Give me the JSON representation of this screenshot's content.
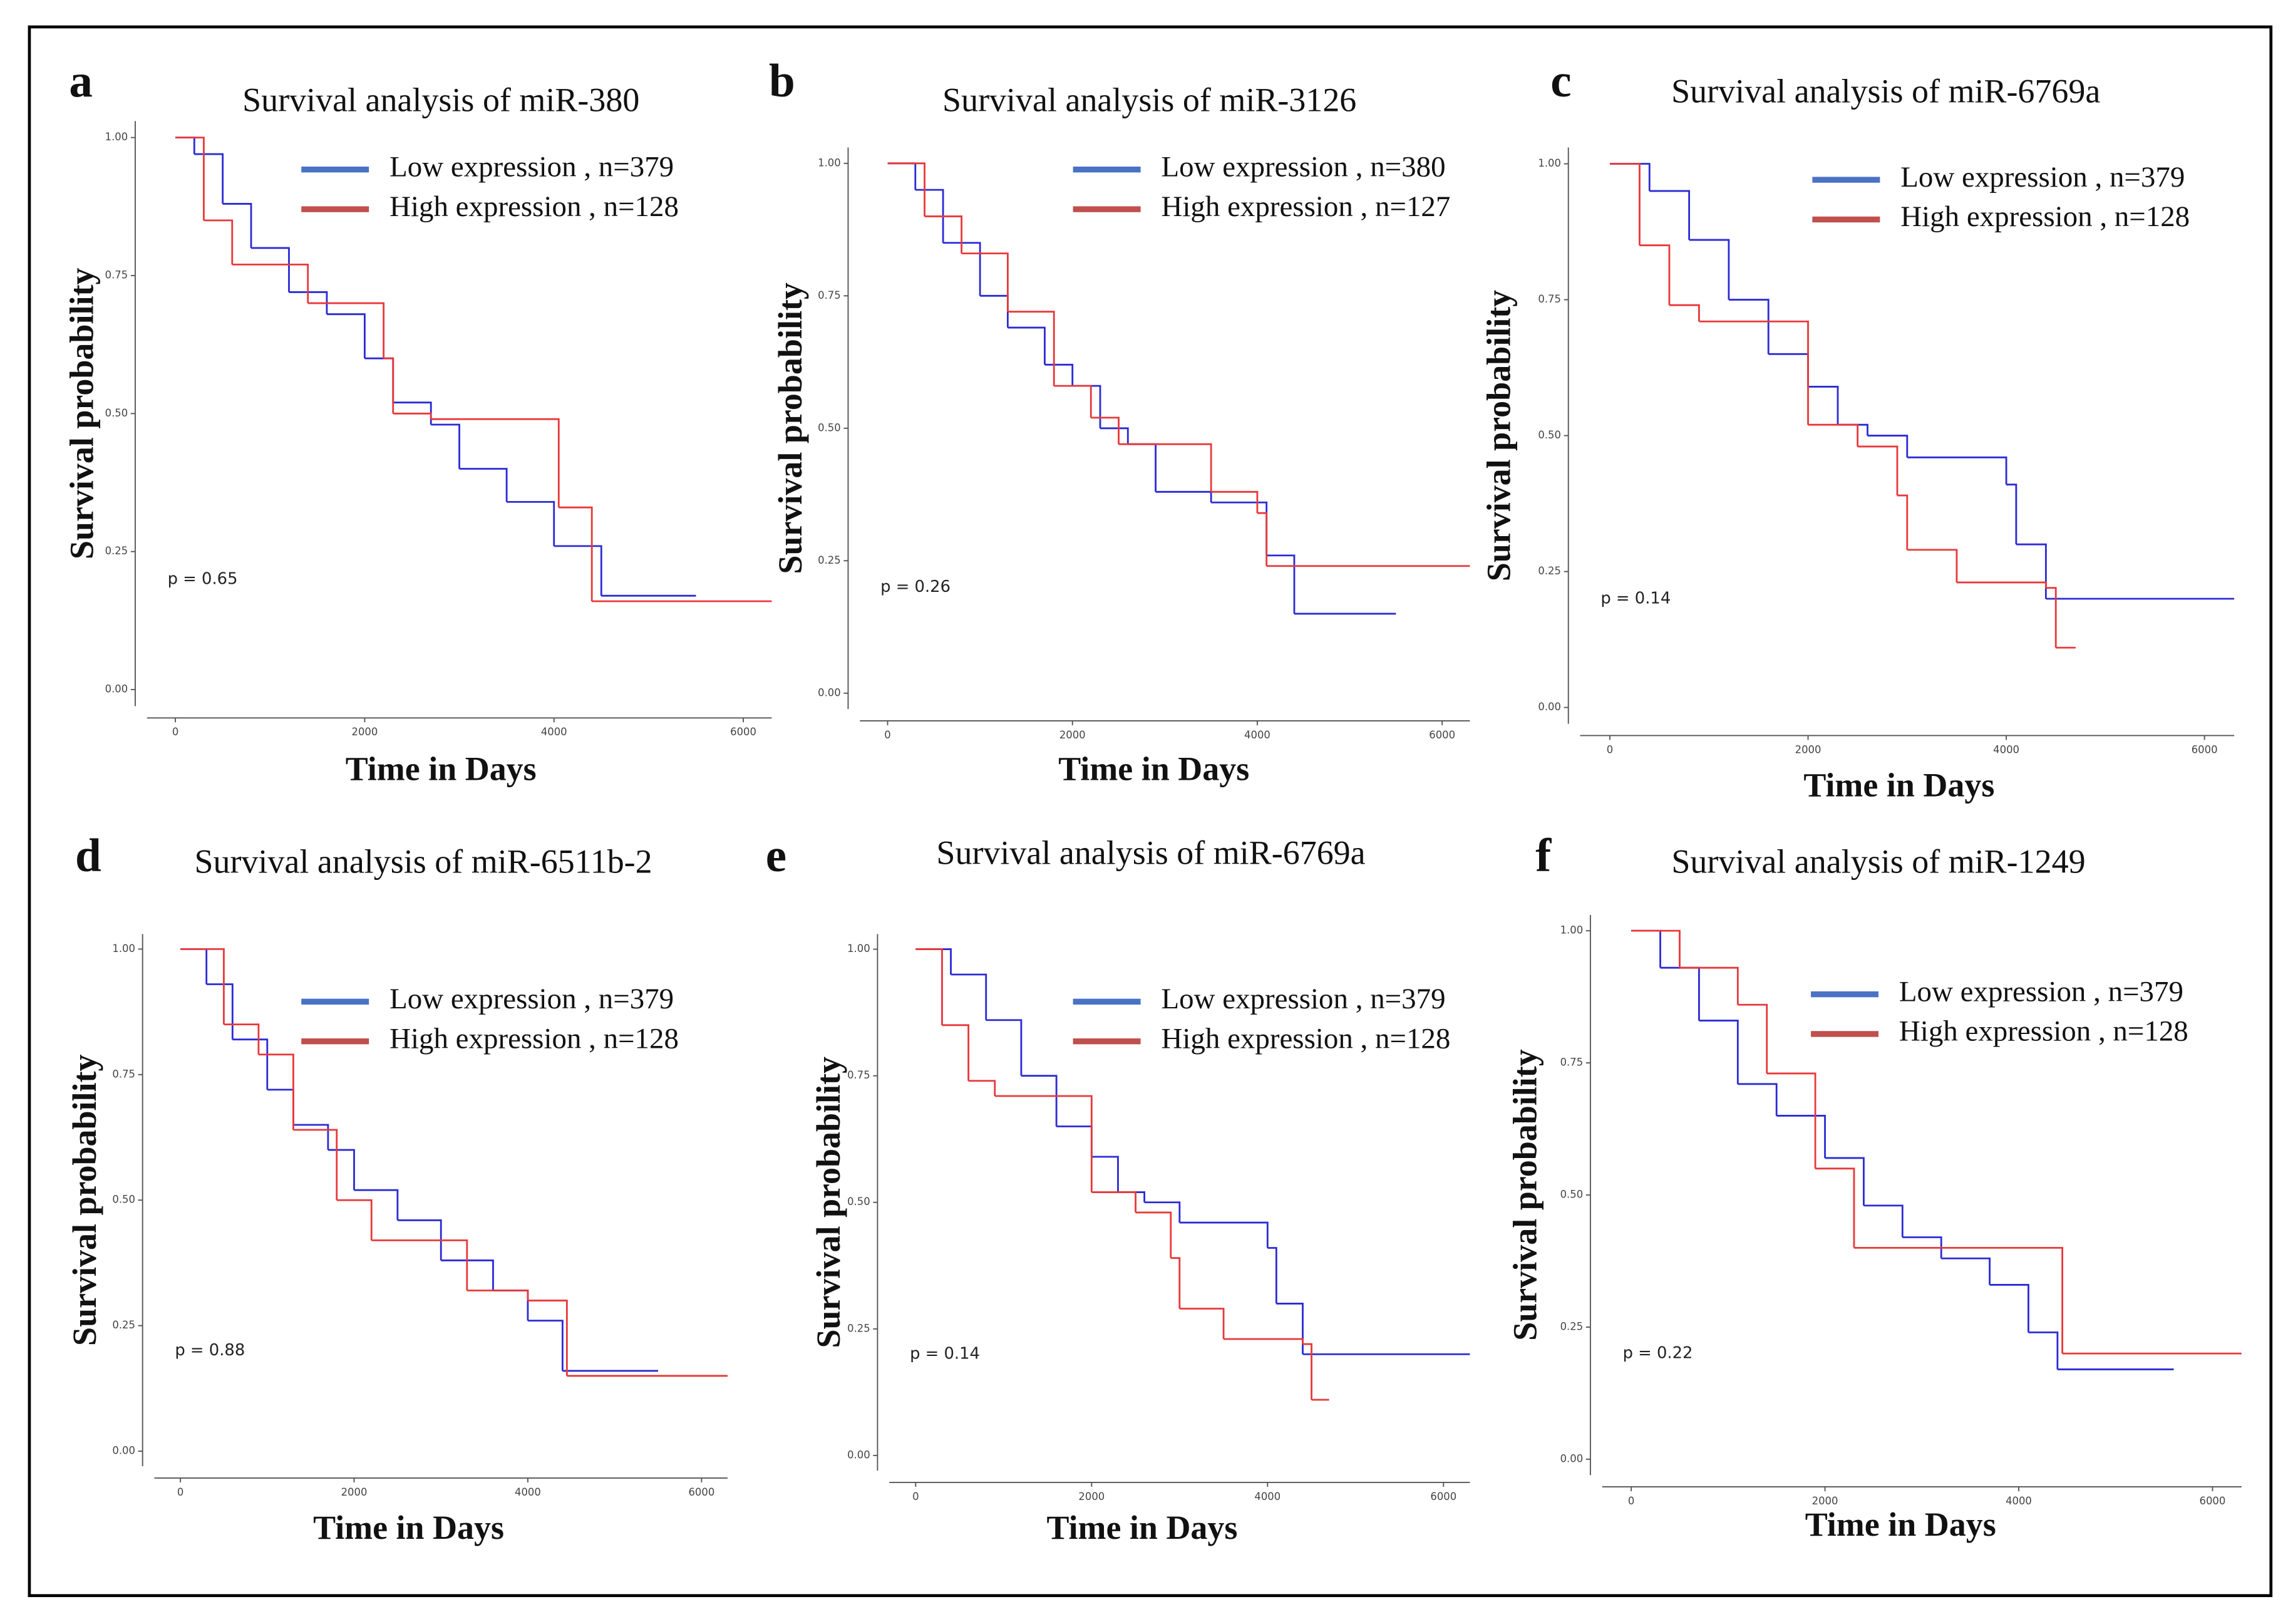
{
  "chart_data": [
    {
      "type": "step",
      "panel_label": "a",
      "title": "Survival analysis of miR-380",
      "xlabel": "Time in Days",
      "ylabel": "Survival probability",
      "annotation": "p = 0.65",
      "xlim": [
        -300,
        6300
      ],
      "ylim": [
        -0.03,
        1.03
      ],
      "xticks": [
        0,
        2000,
        4000,
        6000
      ],
      "yticks": [
        {
          "value": 0,
          "label": "0.00"
        },
        0.25,
        {
          "value": 0.5,
          "label": "0.50"
        },
        0.75,
        {
          "value": 1,
          "label": "1.00"
        }
      ],
      "series": [
        {
          "name": "Low expression , n=379",
          "color": "#2b2bd6",
          "legend_color": "#4a72c4",
          "x": [
            0,
            200,
            500,
            800,
            1200,
            1600,
            2000,
            2300,
            2700,
            3000,
            3500,
            4000,
            4500,
            5500
          ],
          "values": [
            1,
            0.97,
            0.88,
            0.8,
            0.72,
            0.68,
            0.6,
            0.52,
            0.48,
            0.4,
            0.34,
            0.26,
            0.17,
            0.17
          ]
        },
        {
          "name": "High expression , n=128",
          "color": "#e8383b",
          "legend_color": "#c0504d",
          "x": [
            0,
            300,
            600,
            1400,
            2200,
            2300,
            2700,
            4050,
            4400,
            6300
          ],
          "values": [
            1,
            0.85,
            0.77,
            0.7,
            0.6,
            0.5,
            0.49,
            0.33,
            0.16,
            0.16
          ]
        }
      ]
    },
    {
      "type": "step",
      "panel_label": "b",
      "title": "Survival analysis of miR-3126",
      "xlabel": "Time in Days",
      "ylabel": "Survival probability",
      "annotation": "p = 0.26",
      "xlim": [
        -300,
        6300
      ],
      "ylim": [
        -0.03,
        1.03
      ],
      "xticks": [
        0,
        2000,
        4000,
        6000
      ],
      "yticks": [
        {
          "value": 0,
          "label": "0.00"
        },
        0.25,
        {
          "value": 0.5,
          "label": "0.50"
        },
        0.75,
        {
          "value": 1,
          "label": "1.00"
        }
      ],
      "series": [
        {
          "name": "Low expression , n=380",
          "color": "#2b2bd6",
          "legend_color": "#4a72c4",
          "x": [
            0,
            300,
            600,
            1000,
            1300,
            1700,
            2000,
            2300,
            2600,
            2900,
            3500,
            4100,
            4400,
            5500
          ],
          "values": [
            1,
            0.95,
            0.85,
            0.75,
            0.69,
            0.62,
            0.58,
            0.5,
            0.47,
            0.38,
            0.36,
            0.26,
            0.15,
            0.15
          ]
        },
        {
          "name": "High expression , n=127",
          "color": "#e8383b",
          "legend_color": "#c0504d",
          "x": [
            0,
            400,
            800,
            1300,
            1800,
            2200,
            2500,
            3500,
            4000,
            4100,
            6300
          ],
          "values": [
            1,
            0.9,
            0.83,
            0.72,
            0.58,
            0.52,
            0.47,
            0.38,
            0.34,
            0.24,
            0.24
          ]
        }
      ]
    },
    {
      "type": "step",
      "panel_label": "c",
      "title": "Survival analysis of miR-6769a",
      "xlabel": "Time in Days",
      "ylabel": "Survival probability",
      "annotation": "p = 0.14",
      "xlim": [
        -300,
        6300
      ],
      "ylim": [
        -0.03,
        1.03
      ],
      "xticks": [
        0,
        2000,
        4000,
        6000
      ],
      "yticks": [
        {
          "value": 0,
          "label": "0.00"
        },
        0.25,
        {
          "value": 0.5,
          "label": "0.50"
        },
        0.75,
        {
          "value": 1,
          "label": "1.00"
        }
      ],
      "series": [
        {
          "name": "Low expression , n=379",
          "color": "#2b2bd6",
          "legend_color": "#4a72c4",
          "x": [
            0,
            400,
            800,
            1200,
            1600,
            2000,
            2300,
            2600,
            3000,
            4000,
            4100,
            4400,
            6300
          ],
          "values": [
            1,
            0.95,
            0.86,
            0.75,
            0.65,
            0.59,
            0.52,
            0.5,
            0.46,
            0.41,
            0.3,
            0.2,
            0.2
          ]
        },
        {
          "name": "High expression , n=128",
          "color": "#e8383b",
          "legend_color": "#c0504d",
          "x": [
            0,
            300,
            600,
            900,
            2000,
            2500,
            2900,
            3000,
            3500,
            4400,
            4500,
            4700
          ],
          "values": [
            1,
            0.85,
            0.74,
            0.71,
            0.52,
            0.48,
            0.39,
            0.29,
            0.23,
            0.22,
            0.11,
            0.11
          ]
        }
      ]
    },
    {
      "type": "step",
      "panel_label": "d",
      "title": "Survival analysis of miR-6511b-2",
      "xlabel": "Time in Days",
      "ylabel": "Survival probability",
      "annotation": "p = 0.88",
      "xlim": [
        -300,
        6300
      ],
      "ylim": [
        -0.03,
        1.03
      ],
      "xticks": [
        0,
        2000,
        4000,
        6000
      ],
      "yticks": [
        {
          "value": 0,
          "label": "0.00"
        },
        0.25,
        {
          "value": 0.5,
          "label": "0.50"
        },
        0.75,
        {
          "value": 1,
          "label": "1.00"
        }
      ],
      "series": [
        {
          "name": "Low expression , n=379",
          "color": "#2b2bd6",
          "legend_color": "#4a72c4",
          "x": [
            0,
            300,
            600,
            1000,
            1300,
            1700,
            2000,
            2500,
            3000,
            3600,
            4000,
            4400,
            5500
          ],
          "values": [
            1,
            0.93,
            0.82,
            0.72,
            0.65,
            0.6,
            0.52,
            0.46,
            0.38,
            0.32,
            0.26,
            0.16,
            0.16
          ]
        },
        {
          "name": "High expression , n=128",
          "color": "#e8383b",
          "legend_color": "#c0504d",
          "x": [
            0,
            500,
            900,
            1300,
            1800,
            2200,
            3300,
            4000,
            4450,
            6300
          ],
          "values": [
            1,
            0.85,
            0.79,
            0.64,
            0.5,
            0.42,
            0.32,
            0.3,
            0.15,
            0.15
          ]
        }
      ]
    },
    {
      "type": "step",
      "panel_label": "e",
      "title": "Survival analysis of miR-6769a",
      "xlabel": "Time in Days",
      "ylabel": "Survival probability",
      "annotation": "p = 0.14",
      "xlim": [
        -300,
        6300
      ],
      "ylim": [
        -0.03,
        1.03
      ],
      "xticks": [
        0,
        2000,
        4000,
        6000
      ],
      "yticks": [
        {
          "value": 0,
          "label": "0.00"
        },
        0.25,
        {
          "value": 0.5,
          "label": "0.50"
        },
        0.75,
        {
          "value": 1,
          "label": "1.00"
        }
      ],
      "series": [
        {
          "name": "Low expression , n=379",
          "color": "#2b2bd6",
          "legend_color": "#4a72c4",
          "x": [
            0,
            400,
            800,
            1200,
            1600,
            2000,
            2300,
            2600,
            3000,
            4000,
            4100,
            4400,
            6300
          ],
          "values": [
            1,
            0.95,
            0.86,
            0.75,
            0.65,
            0.59,
            0.52,
            0.5,
            0.46,
            0.41,
            0.3,
            0.2,
            0.2
          ]
        },
        {
          "name": "High expression , n=128",
          "color": "#e8383b",
          "legend_color": "#c0504d",
          "x": [
            0,
            300,
            600,
            900,
            2000,
            2500,
            2900,
            3000,
            3500,
            4400,
            4500,
            4700
          ],
          "values": [
            1,
            0.85,
            0.74,
            0.71,
            0.52,
            0.48,
            0.39,
            0.29,
            0.23,
            0.22,
            0.11,
            0.11
          ]
        }
      ]
    },
    {
      "type": "step",
      "panel_label": "f",
      "title": "Survival analysis of miR-1249",
      "xlabel": "Time in Days",
      "ylabel": "Survival probability",
      "annotation": "p = 0.22",
      "xlim": [
        -300,
        6300
      ],
      "ylim": [
        -0.03,
        1.03
      ],
      "xticks": [
        0,
        2000,
        4000,
        6000
      ],
      "yticks": [
        {
          "value": 0,
          "label": "0.00"
        },
        0.25,
        {
          "value": 0.5,
          "label": "0.50"
        },
        0.75,
        {
          "value": 1,
          "label": "1.00"
        }
      ],
      "series": [
        {
          "name": "Low expression , n=379",
          "color": "#2b2bd6",
          "legend_color": "#4a72c4",
          "x": [
            0,
            300,
            700,
            1100,
            1500,
            2000,
            2400,
            2800,
            3200,
            3700,
            4100,
            4400,
            5600
          ],
          "values": [
            1,
            0.93,
            0.83,
            0.71,
            0.65,
            0.57,
            0.48,
            0.42,
            0.38,
            0.33,
            0.24,
            0.17,
            0.17
          ]
        },
        {
          "name": "High expression , n=128",
          "color": "#e8383b",
          "legend_color": "#c0504d",
          "x": [
            0,
            500,
            1100,
            1400,
            1900,
            2300,
            4450,
            6300
          ],
          "values": [
            1,
            0.93,
            0.86,
            0.73,
            0.55,
            0.4,
            0.2,
            0.2
          ]
        }
      ]
    }
  ]
}
